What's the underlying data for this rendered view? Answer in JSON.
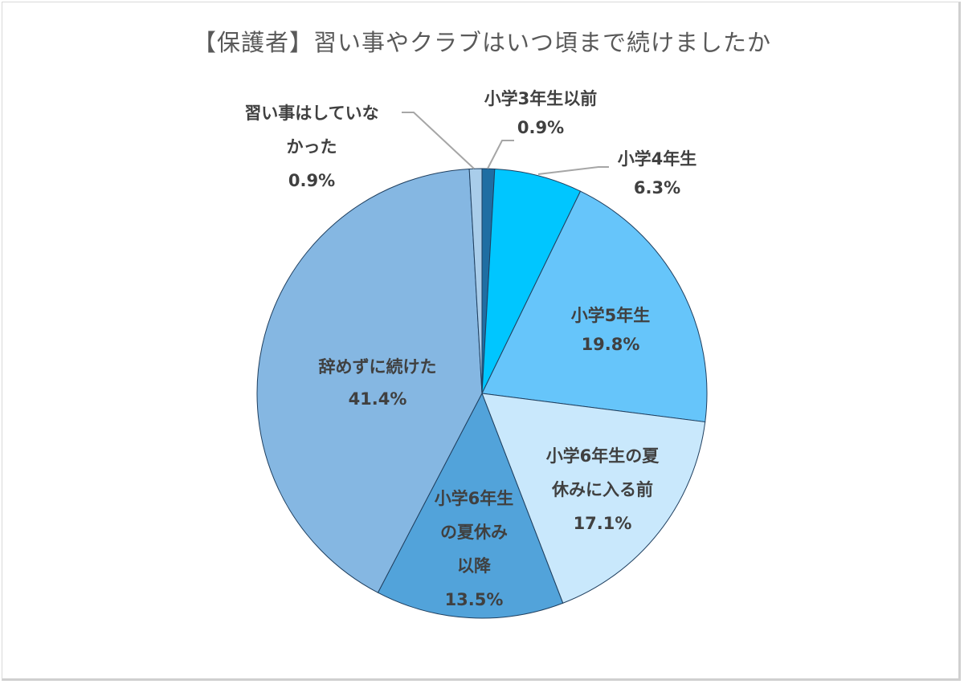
{
  "chart_data": {
    "type": "pie",
    "title": "【保護者】習い事やクラブはいつ頃まで続けましたか",
    "start_angle": "12 o'clock, clockwise",
    "slices": [
      {
        "label": "小学3年生以前",
        "value": 0.9,
        "display": "0.9%",
        "color": "#1f6ea3"
      },
      {
        "label": "小学4年生",
        "value": 6.3,
        "display": "6.3%",
        "color": "#00c6ff"
      },
      {
        "label": "小学5年生",
        "value": 19.8,
        "display": "19.8%",
        "color": "#66c5fa"
      },
      {
        "label": "小学6年生の夏休みに入る前",
        "value": 17.1,
        "display": "17.1%",
        "color": "#c9e8fc"
      },
      {
        "label": "小学6年生の夏休み以降",
        "value": 13.5,
        "display": "13.5%",
        "color": "#52a3da"
      },
      {
        "label": "辞めずに続けた",
        "value": 41.4,
        "display": "41.4%",
        "color": "#85b7e2"
      },
      {
        "label": "習い事はしていなかった",
        "value": 0.9,
        "display": "0.9%",
        "color": "#a9cdea"
      }
    ]
  },
  "labels": {
    "s0": {
      "l1": "小学3年生以前",
      "pct": "0.9%"
    },
    "s1": {
      "l1": "小学4年生",
      "pct": "6.3%"
    },
    "s2": {
      "l1": "小学5年生",
      "pct": "19.8%"
    },
    "s3": {
      "l1": "小学6年生の夏",
      "l2": "休みに入る前",
      "pct": "17.1%"
    },
    "s4": {
      "l1": "小学6年生",
      "l2": "の夏休み",
      "l3": "以降",
      "pct": "13.5%"
    },
    "s5": {
      "l1": "辞めずに続けた",
      "pct": "41.4%"
    },
    "s6": {
      "l1": "習い事はしていな",
      "l2": "かった",
      "pct": "0.9%"
    }
  }
}
